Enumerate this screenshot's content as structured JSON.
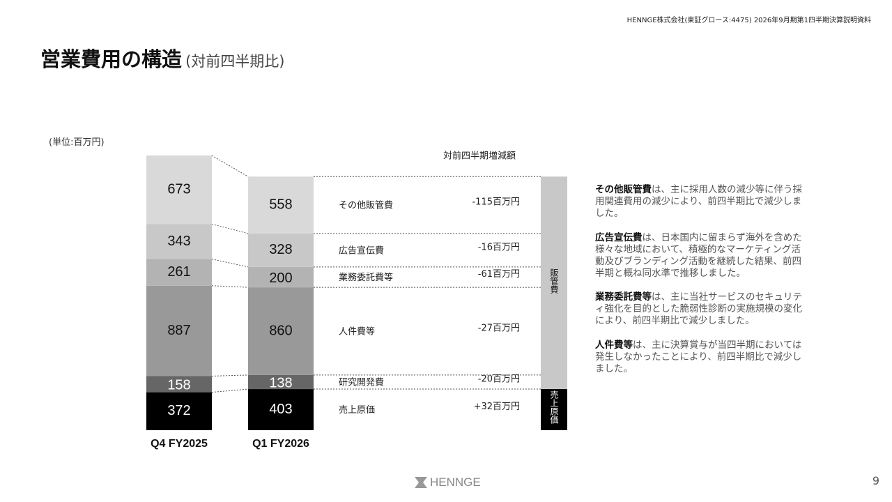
{
  "header": {
    "company": "HENNGE株式会社(東証グロース:4475) 2026年9月期第1四半期決算説明資料",
    "title": "営業費用の構造",
    "subtitle": "(対前四半期比)"
  },
  "chart_data": {
    "type": "stacked-bar",
    "unit": "(単位:百万円)",
    "change_header": "対前四半期増減額",
    "categories": [
      "Q4 FY2025",
      "Q1 FY2026"
    ],
    "series": [
      {
        "name": "売上原価",
        "color": "#000000",
        "text_color": "#ffffff",
        "values": [
          372,
          403
        ],
        "change": "+32百万円"
      },
      {
        "name": "研究開発費",
        "color": "#666666",
        "text_color": "#ffffff",
        "values": [
          158,
          138
        ],
        "change": "-20百万円"
      },
      {
        "name": "人件費等",
        "color": "#999999",
        "text_color": "#111111",
        "values": [
          887,
          860
        ],
        "change": "-27百万円"
      },
      {
        "name": "業務委託費等",
        "color": "#b3b3b3",
        "text_color": "#111111",
        "values": [
          261,
          200
        ],
        "change": "-61百万円"
      },
      {
        "name": "広告宣伝費",
        "color": "#c8c8c8",
        "text_color": "#111111",
        "values": [
          343,
          328
        ],
        "change": "-16百万円"
      },
      {
        "name": "その他販管費",
        "color": "#d9d9d9",
        "text_color": "#111111",
        "values": [
          673,
          558
        ],
        "change": "-115百万円"
      }
    ],
    "groups": [
      {
        "label": "販管費",
        "color": "#c8c8c8",
        "text_color": "#111111"
      },
      {
        "label": "売上原価",
        "color": "#000000",
        "text_color": "#ffffff"
      }
    ]
  },
  "notes": [
    {
      "bold": "その他販管費",
      "text": "は、主に採用人数の減少等に伴う採用関連費用の減少により、前四半期比で減少しました。"
    },
    {
      "bold": "広告宣伝費",
      "text": "は、日本国内に留まらず海外を含めた様々な地域において、積極的なマーケティング活動及びブランディング活動を継続した結果、前四半期と概ね同水準で推移しました。"
    },
    {
      "bold": "業務委託費等",
      "text": "は、主に当社サービスのセキュリティ強化を目的とした脆弱性診断の実施規模の変化により、前四半期比で減少しました。"
    },
    {
      "bold": "人件費等",
      "text": "は、主に決算賞与が当四半期においては発生しなかったことにより、前四半期比で減少しました。"
    }
  ],
  "footer": {
    "logo": "HENNGE",
    "page": "9"
  }
}
